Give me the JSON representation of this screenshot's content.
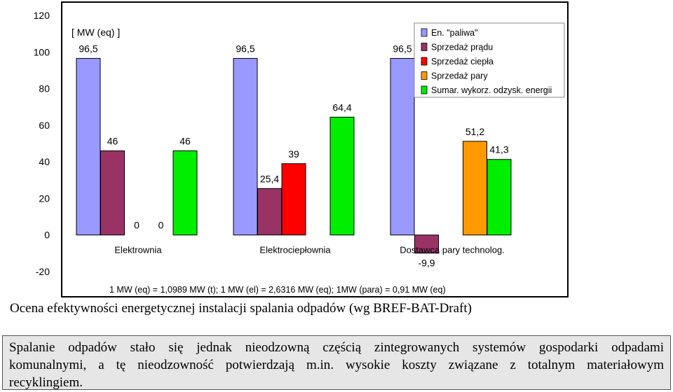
{
  "chart_data": {
    "type": "bar",
    "unit_label": "[ MW (eq) ]",
    "categories": [
      "Elektrownia",
      "Elektrociepłownia",
      "Dostawca pary technolog."
    ],
    "series": [
      {
        "name": "En. \"paliwa\"",
        "color": "#9999ff",
        "values": [
          96.5,
          96.5,
          96.5
        ],
        "labels": [
          "96,5",
          "96,5",
          "96,5"
        ]
      },
      {
        "name": "Sprzedaż prądu",
        "color": "#993366",
        "values": [
          46,
          25.4,
          -9.9
        ],
        "labels": [
          "46",
          "25,4",
          "-9,9"
        ]
      },
      {
        "name": "Sprzedaż ciepła",
        "color": "#ff0000",
        "values": [
          0,
          39,
          0
        ],
        "labels": [
          "0",
          "39",
          ""
        ]
      },
      {
        "name": "Sprzedaż pary",
        "color": "#ff9900",
        "values": [
          0,
          0,
          51.2
        ],
        "labels": [
          "0",
          "",
          "51,2"
        ]
      },
      {
        "name": "Sumar. wykorz. odzysk. energii",
        "color": "#00ee00",
        "values": [
          46,
          64.4,
          41.3
        ],
        "labels": [
          "46",
          "64,4",
          "41,3"
        ]
      }
    ],
    "ylim": [
      -20,
      120
    ],
    "yticks": [
      -20,
      0,
      20,
      40,
      60,
      80,
      100,
      120
    ],
    "grid": false,
    "legend_position": "top-right",
    "footnote": "1 MW (eq) = 1,0989 MW (t); 1 MW (el) = 2,6316 MW (eq); 1MW (para) = 0,91 MW (eq)"
  },
  "caption": "Ocena efektywności energetycznej instalacji spalania odpadów (wg BREF-BAT-Draft)",
  "note": {
    "line1": "Spalanie odpadów stało się jednak nieodzowną częścią zintegrowanych systemów gospodarki odpadami",
    "line2": "komunalnymi, a tę nieodzowność potwierdzają m.in. wysokie koszty związane z totalnym materiałowym",
    "line3": "recyklingiem."
  }
}
